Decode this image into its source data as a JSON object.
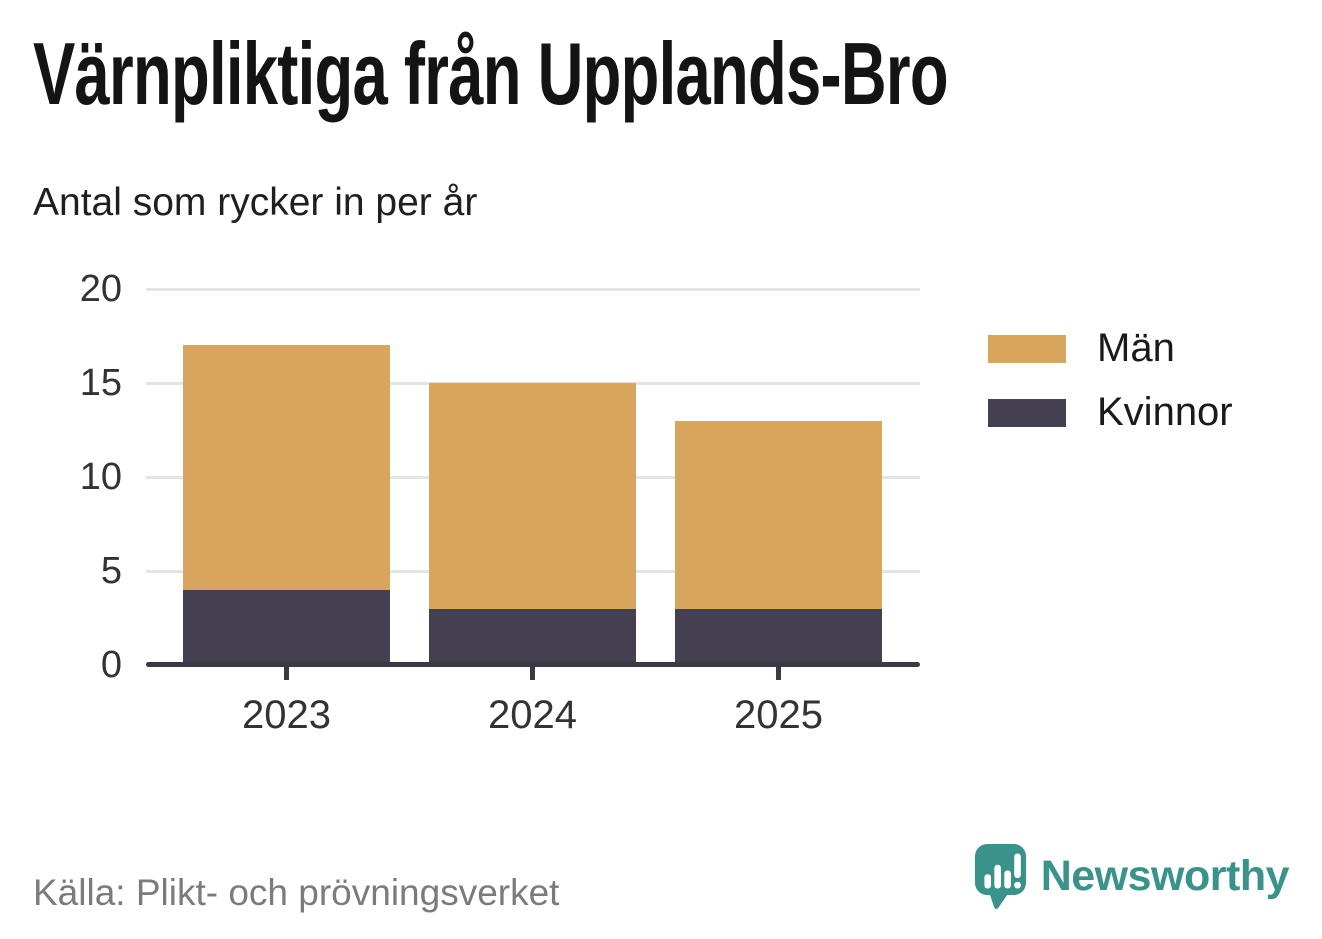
{
  "title": "Värnpliktiga från Upplands-Bro",
  "subtitle": "Antal som rycker in per år",
  "source": "Källa: Plikt- och prövningsverket",
  "brand": {
    "name": "Newsworthy",
    "icon": "newsworthy-speech-bubble-bar-chart-icon",
    "color": "#3a938b"
  },
  "colors": {
    "men": "#d7a65c",
    "women": "#444051",
    "gridline": "#e4e4e4",
    "axis": "#3b3943",
    "tick_text": "#333333",
    "title_text": "#141414",
    "source_text": "#7b7b7b"
  },
  "chart_data": {
    "type": "bar",
    "stacked": true,
    "title": "Värnpliktiga från Upplands-Bro",
    "subtitle": "Antal som rycker in per år",
    "categories": [
      "2023",
      "2024",
      "2025"
    ],
    "series": [
      {
        "name": "Män",
        "color": "#d7a65c",
        "values": [
          13,
          12,
          10
        ]
      },
      {
        "name": "Kvinnor",
        "color": "#444051",
        "values": [
          4,
          3,
          3
        ]
      }
    ],
    "stack_order_bottom_to_top": [
      "Kvinnor",
      "Män"
    ],
    "xlabel": "",
    "ylabel": "",
    "ylim": [
      0,
      20
    ],
    "yticks": [
      0,
      5,
      10,
      15,
      20
    ],
    "grid": true,
    "legend_position": "right"
  }
}
